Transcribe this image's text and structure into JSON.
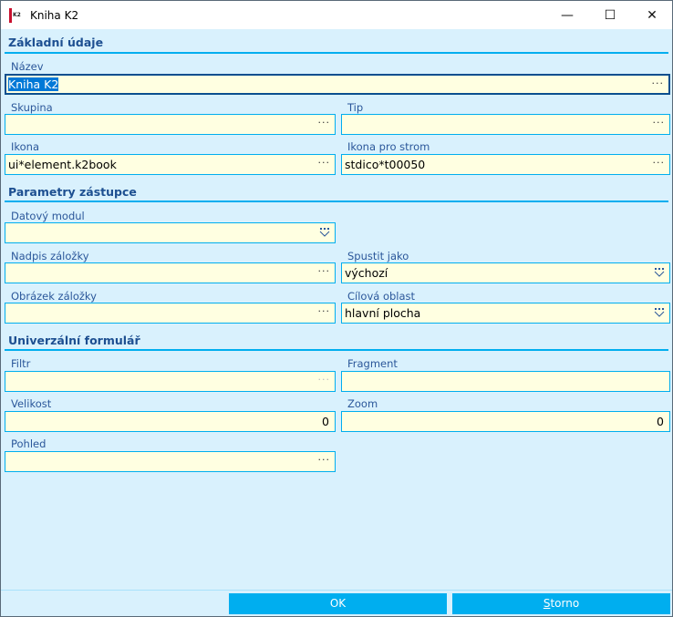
{
  "window": {
    "title": "Kniha K2",
    "logo_text": "K2",
    "minimize": "—",
    "maximize": "☐",
    "close": "✕"
  },
  "sections": {
    "basic": "Základní údaje",
    "params": "Parametry zástupce",
    "form": "Univerzální formulář"
  },
  "fields": {
    "nazev": {
      "label": "Název",
      "value": "Kniha K2"
    },
    "skupina": {
      "label": "Skupina",
      "value": ""
    },
    "tip": {
      "label": "Tip",
      "value": ""
    },
    "ikona": {
      "label": "Ikona",
      "value": "ui*element.k2book"
    },
    "ikona_strom": {
      "label": "Ikona pro strom",
      "value": "stdico*t00050"
    },
    "datovy_modul": {
      "label": "Datový modul",
      "value": ""
    },
    "nadpis": {
      "label": "Nadpis záložky",
      "value": ""
    },
    "spustit": {
      "label": "Spustit jako",
      "value": "výchozí"
    },
    "obrazek": {
      "label": "Obrázek záložky",
      "value": ""
    },
    "cilova": {
      "label": "Cílová oblast",
      "value": "hlavní plocha"
    },
    "filtr": {
      "label": "Filtr",
      "value": ""
    },
    "fragment": {
      "label": "Fragment",
      "value": ""
    },
    "velikost": {
      "label": "Velikost",
      "value": "0"
    },
    "zoom": {
      "label": "Zoom",
      "value": "0"
    },
    "pohled": {
      "label": "Pohled",
      "value": ""
    }
  },
  "dots": "···",
  "buttons": {
    "ok": "OK",
    "storno_first": "S",
    "storno_rest": "torno"
  }
}
